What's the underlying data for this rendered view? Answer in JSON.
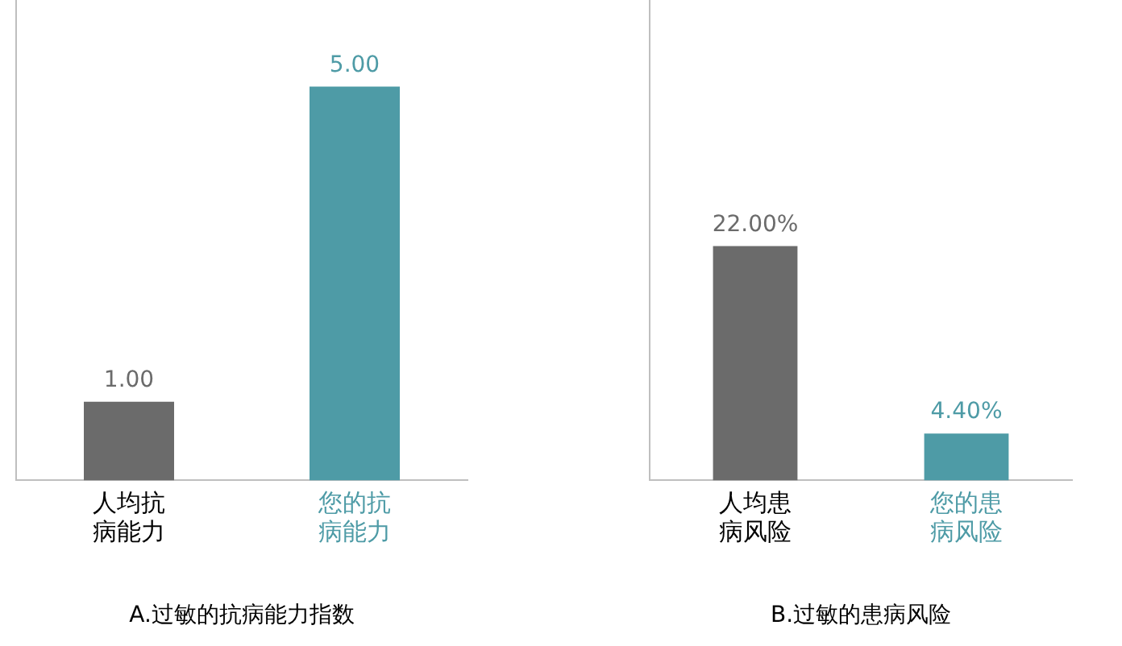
{
  "chart_data": [
    {
      "type": "bar",
      "title": "A.过敏的抗病能力指数",
      "categories": [
        "人均抗病能力",
        "您的抗病能力"
      ],
      "values": [
        1,
        5
      ],
      "colors": [
        "#6b6b6b",
        "#4e9ba6"
      ],
      "value_labels": [
        "1.00",
        "5.00"
      ],
      "grid": false,
      "legend": false
    },
    {
      "type": "bar",
      "title": "B.过敏的患病风险",
      "categories": [
        "人均患病风险",
        "您的患病风险"
      ],
      "values": [
        22,
        4.4
      ],
      "colors": [
        "#6b6b6b",
        "#4e9ba6"
      ],
      "value_labels": [
        "22.00%",
        "4.40%"
      ],
      "grid": false,
      "legend": false
    }
  ]
}
